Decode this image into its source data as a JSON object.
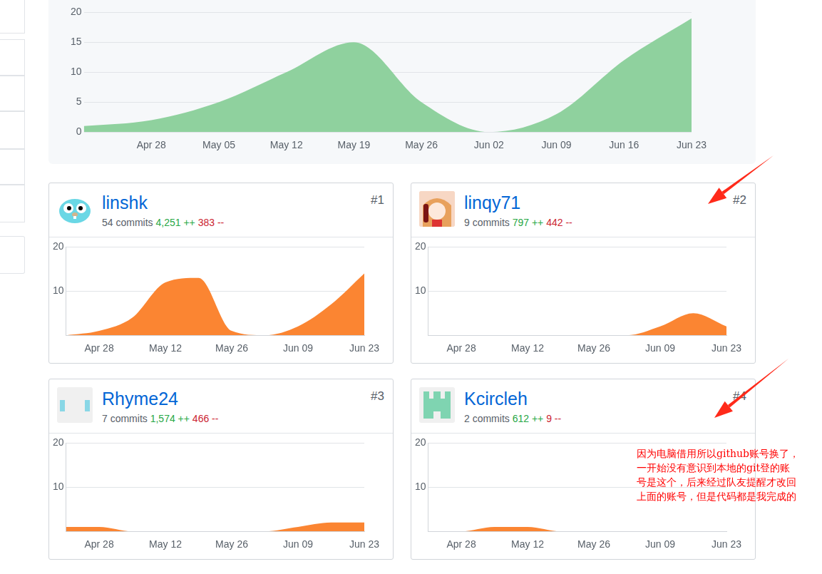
{
  "chart_data": {
    "type": "area",
    "categories": [
      null,
      "Apr 28",
      "May 05",
      "May 12",
      "May 19",
      "May 26",
      "Jun 02",
      "Jun 09",
      "Jun 16",
      "Jun 23"
    ],
    "values": [
      1,
      2,
      5,
      10,
      15,
      5,
      0,
      3,
      12,
      19
    ],
    "color": "#8fd19e",
    "ylim": [
      0,
      20
    ],
    "yticks": [
      0,
      5,
      10,
      15,
      20
    ],
    "grid": true
  },
  "contributors": [
    {
      "rank": "#1",
      "name": "linshk",
      "commits": "54 commits",
      "additions": "4,251 ++",
      "deletions": "383 --",
      "chart_data": {
        "type": "area",
        "categories": [
          null,
          "Apr 28",
          null,
          "May 12",
          null,
          "May 26",
          null,
          "Jun 09",
          null,
          "Jun 23"
        ],
        "values": [
          0,
          1,
          4,
          12,
          13,
          1,
          0,
          2,
          7,
          14
        ],
        "color": "#fb8532",
        "ylim": [
          0,
          20
        ],
        "yticks": [
          10,
          20
        ],
        "grid": true
      }
    },
    {
      "rank": "#2",
      "name": "linqy71",
      "commits": "9 commits",
      "additions": "797 ++",
      "deletions": "442 --",
      "chart_data": {
        "type": "area",
        "categories": [
          null,
          "Apr 28",
          null,
          "May 12",
          null,
          "May 26",
          null,
          "Jun 09",
          null,
          "Jun 23"
        ],
        "values": [
          0,
          0,
          0,
          0,
          0,
          0,
          0,
          2,
          5,
          2
        ],
        "color": "#fb8532",
        "ylim": [
          0,
          20
        ],
        "yticks": [
          10,
          20
        ],
        "grid": true
      }
    },
    {
      "rank": "#3",
      "name": "Rhyme24",
      "commits": "7 commits",
      "additions": "1,574 ++",
      "deletions": "466 --",
      "chart_data": {
        "type": "area",
        "categories": [
          null,
          "Apr 28",
          null,
          "May 12",
          null,
          "May 26",
          null,
          "Jun 09",
          null,
          "Jun 23"
        ],
        "values": [
          1,
          1,
          0,
          0,
          0,
          0,
          0,
          1,
          2,
          2
        ],
        "color": "#fb8532",
        "ylim": [
          0,
          20
        ],
        "yticks": [
          10,
          20
        ],
        "grid": true
      }
    },
    {
      "rank": "#4",
      "name": "Kcircleh",
      "commits": "2 commits",
      "additions": "612 ++",
      "deletions": "9 --",
      "chart_data": {
        "type": "area",
        "categories": [
          null,
          "Apr 28",
          null,
          "May 12",
          null,
          "May 26",
          null,
          "Jun 09",
          null,
          "Jun 23"
        ],
        "values": [
          0,
          0,
          1,
          1,
          0,
          0,
          0,
          0,
          0,
          0
        ],
        "color": "#fb8532",
        "ylim": [
          0,
          20
        ],
        "yticks": [
          10,
          20
        ],
        "grid": true
      }
    }
  ],
  "annotation": [
    "因为电脑借用所以github账号换了，",
    "一开始没有意识到本地的git登的账",
    "号是这个，后来经过队友提醒才改回",
    "上面的账号，但是代码都是我完成的"
  ]
}
